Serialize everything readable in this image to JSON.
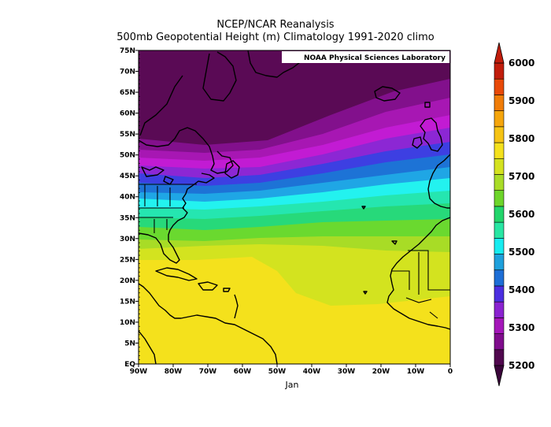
{
  "header": {
    "title": "NCEP/NCAR Reanalysis",
    "subtitle": "500mb Geopotential Height (m) Climatology 1991-2020 climo"
  },
  "credit": "NOAA Physical Sciences Laboratory",
  "month_label": "Jan",
  "axes": {
    "lon_ticks": [
      "90W",
      "80W",
      "70W",
      "60W",
      "50W",
      "40W",
      "30W",
      "20W",
      "10W",
      "0"
    ],
    "lat_ticks": [
      "EQ",
      "5N",
      "10N",
      "15N",
      "20N",
      "25N",
      "30N",
      "35N",
      "40N",
      "45N",
      "50N",
      "55N",
      "60N",
      "65N",
      "70N",
      "75N"
    ]
  },
  "colorbar": {
    "labels": [
      "5200",
      "5300",
      "5400",
      "5500",
      "5600",
      "5700",
      "5800",
      "5900",
      "6000"
    ],
    "colors": [
      "#50084e",
      "#7f0c8c",
      "#a416b9",
      "#8a22d0",
      "#4b2ee0",
      "#1d6ed6",
      "#1ea0dc",
      "#17ecf0",
      "#28e6a3",
      "#22d56b",
      "#6dd52a",
      "#a9dc27",
      "#d4e21f",
      "#f4e11d",
      "#f5c314",
      "#f5a50b",
      "#f07c07",
      "#e84908",
      "#c11d0c"
    ],
    "extend_colors": {
      "low": "#3a053a",
      "high": "#c11d0c"
    }
  },
  "map": {
    "bands": [
      {
        "color": "#5a0a55"
      },
      {
        "color": "#82108c"
      },
      {
        "color": "#a717b3"
      },
      {
        "color": "#c21bd3"
      },
      {
        "color": "#8c27d4"
      },
      {
        "color": "#3d3fe2"
      },
      {
        "color": "#1d73d6"
      },
      {
        "color": "#1fa6e5"
      },
      {
        "color": "#23f2ef"
      },
      {
        "color": "#25e6b0"
      },
      {
        "color": "#27d97a"
      },
      {
        "color": "#6ad92f"
      },
      {
        "color": "#a8dc26"
      },
      {
        "color": "#d3e31f"
      },
      {
        "color": "#f4e11c"
      },
      {
        "color": "#f7a609"
      }
    ]
  }
}
